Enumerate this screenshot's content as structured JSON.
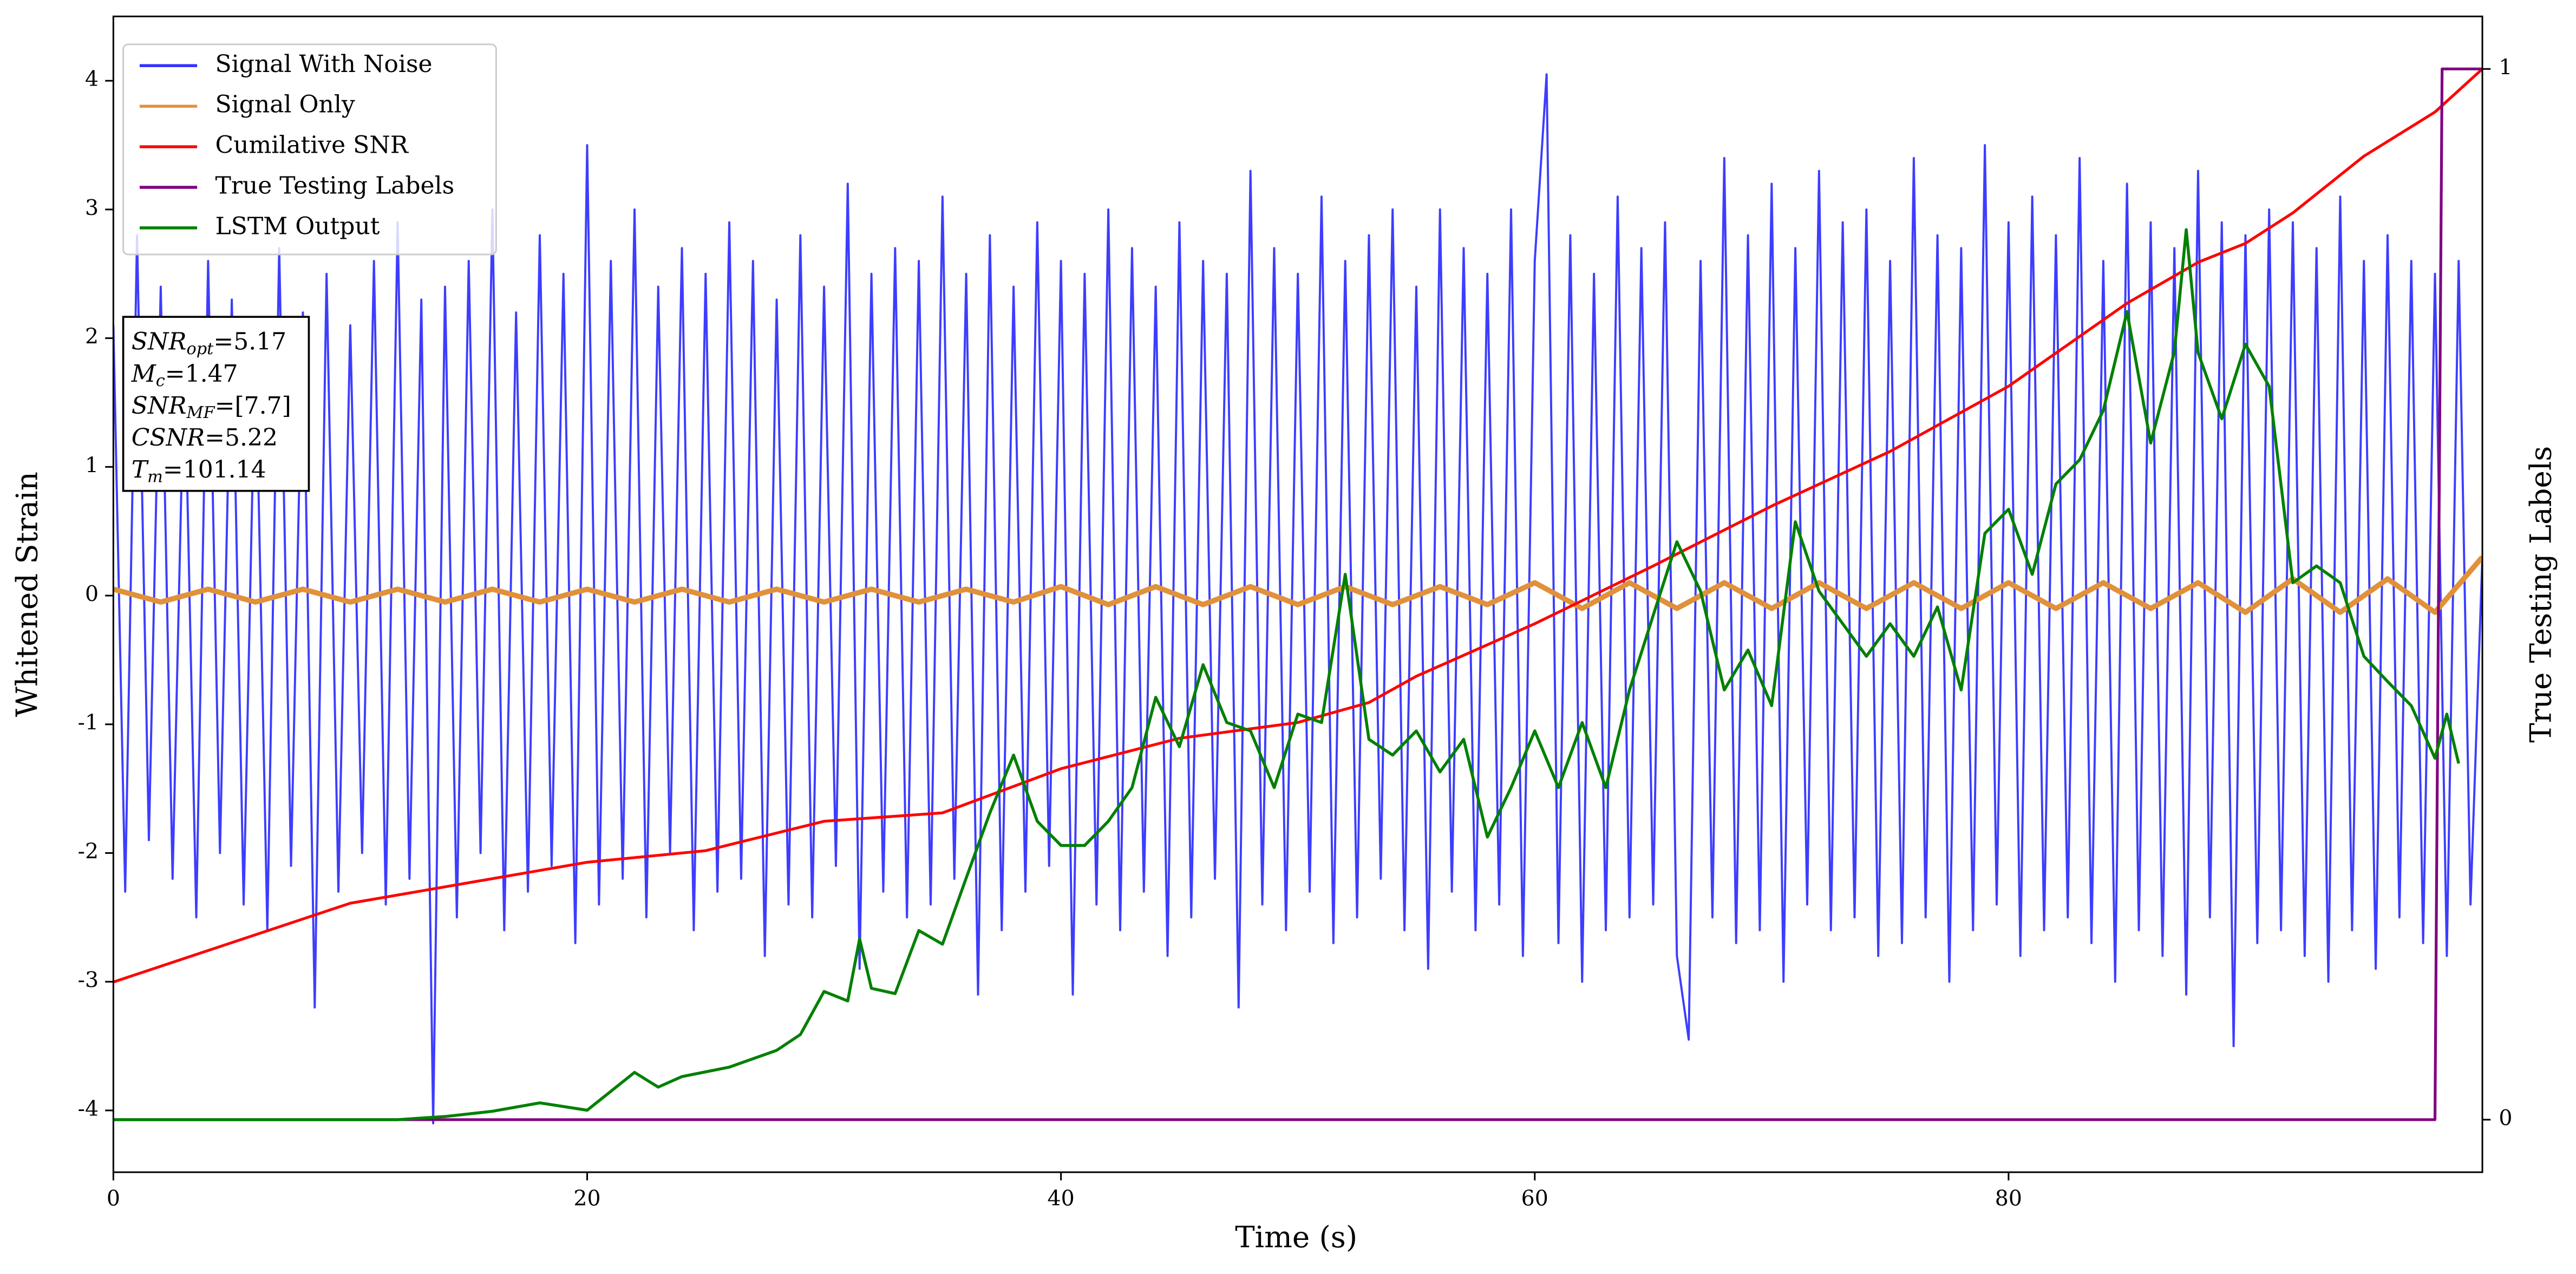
{
  "chart_data": {
    "type": "line",
    "xlabel": "Time (s)",
    "ylabel": "Whitened Strain",
    "y2label": "True Testing Labels",
    "xlim": [
      0,
      100
    ],
    "xticks": [
      0,
      20,
      40,
      60,
      80
    ],
    "ylim": [
      -4.48,
      4.5
    ],
    "yticks": [
      -4,
      -3,
      -2,
      -1,
      0,
      1,
      2,
      3,
      4
    ],
    "y2lim": [
      -0.05,
      1.05
    ],
    "y2ticks": [
      0,
      1
    ],
    "legend": "upper left",
    "annotation_lines": [
      {
        "symbol": "SNR",
        "subscript": "opt",
        "text": "=5.17"
      },
      {
        "symbol": "M",
        "subscript": "c",
        "text": "=1.47"
      },
      {
        "symbol": "SNR",
        "subscript": "MF",
        "text": "=[7.7]"
      },
      {
        "symbol": "CSNR",
        "text": "=5.22"
      },
      {
        "symbol": "T",
        "subscript": "m",
        "text": "=101.14"
      }
    ],
    "series": [
      {
        "name": "Signal With Noise",
        "color": "#3333ff",
        "x": [
          0,
          0.5,
          1,
          1.5,
          2,
          2.5,
          3,
          3.5,
          4,
          4.5,
          5,
          5.5,
          6,
          6.5,
          7,
          7.5,
          8,
          8.5,
          9,
          9.5,
          10,
          10.5,
          11,
          11.5,
          12,
          12.5,
          13,
          13.5,
          14,
          14.5,
          15,
          15.5,
          16,
          16.5,
          17,
          17.5,
          18,
          18.5,
          19,
          19.5,
          20,
          20.5,
          21,
          21.5,
          22,
          22.5,
          23,
          23.5,
          24,
          24.5,
          25,
          25.5,
          26,
          26.5,
          27,
          27.5,
          28,
          28.5,
          29,
          29.5,
          30,
          30.5,
          31,
          31.5,
          32,
          32.5,
          33,
          33.5,
          34,
          34.5,
          35,
          35.5,
          36,
          36.5,
          37,
          37.5,
          38,
          38.5,
          39,
          39.5,
          40,
          40.5,
          41,
          41.5,
          42,
          42.5,
          43,
          43.5,
          44,
          44.5,
          45,
          45.5,
          46,
          46.5,
          47,
          47.5,
          48,
          48.5,
          49,
          49.5,
          50,
          50.5,
          51,
          51.5,
          52,
          52.5,
          53,
          53.5,
          54,
          54.5,
          55,
          55.5,
          56,
          56.5,
          57,
          57.5,
          58,
          58.5,
          59,
          59.5,
          60,
          60.5,
          61,
          61.5,
          62,
          62.5,
          63,
          63.5,
          64,
          64.5,
          65,
          65.5,
          66,
          66.5,
          67,
          67.5,
          68,
          68.5,
          69,
          69.5,
          70,
          70.5,
          71,
          71.5,
          72,
          72.5,
          73,
          73.5,
          74,
          74.5,
          75,
          75.5,
          76,
          76.5,
          77,
          77.5,
          78,
          78.5,
          79,
          79.5,
          80,
          80.5,
          81,
          81.5,
          82,
          82.5,
          83,
          83.5,
          84,
          84.5,
          85,
          85.5,
          86,
          86.5,
          87,
          87.5,
          88,
          88.5,
          89,
          89.5,
          90,
          90.5,
          91,
          91.5,
          92,
          92.5,
          93,
          93.5,
          94,
          94.5,
          95,
          95.5,
          96,
          96.5,
          97,
          97.5,
          98,
          98.5,
          99,
          99.5,
          100
        ],
        "values": [
          2.1,
          -2.3,
          2.8,
          -1.9,
          2.4,
          -2.2,
          1.9,
          -2.5,
          2.6,
          -2.0,
          2.3,
          -2.4,
          2.0,
          -2.6,
          2.7,
          -2.1,
          2.2,
          -3.2,
          2.5,
          -2.3,
          2.1,
          -2.0,
          2.6,
          -2.4,
          2.9,
          -2.2,
          2.3,
          -4.1,
          2.4,
          -2.5,
          2.6,
          -2.0,
          3.0,
          -2.6,
          2.2,
          -2.3,
          2.8,
          -2.1,
          2.5,
          -2.7,
          3.5,
          -2.4,
          2.6,
          -2.2,
          3.0,
          -2.5,
          2.4,
          -2.0,
          2.7,
          -2.6,
          2.5,
          -2.3,
          2.9,
          -2.2,
          2.6,
          -2.8,
          2.3,
          -2.4,
          2.8,
          -2.5,
          2.4,
          -2.1,
          3.2,
          -2.9,
          2.5,
          -2.3,
          2.7,
          -2.5,
          2.6,
          -2.4,
          3.1,
          -2.2,
          2.5,
          -3.1,
          2.8,
          -2.6,
          2.4,
          -2.3,
          2.9,
          -2.1,
          2.6,
          -3.1,
          2.5,
          -2.4,
          3.0,
          -2.6,
          2.7,
          -2.3,
          2.4,
          -2.8,
          2.9,
          -2.5,
          2.6,
          -2.2,
          2.5,
          -3.2,
          3.3,
          -2.4,
          2.7,
          -2.6,
          2.5,
          -2.3,
          3.1,
          -2.7,
          2.6,
          -2.5,
          2.8,
          -2.2,
          3.0,
          -2.6,
          2.4,
          -2.9,
          3.0,
          -2.3,
          2.7,
          -2.6,
          2.5,
          -2.4,
          3.0,
          -2.8,
          2.6,
          4.05,
          -2.7,
          2.8,
          -3.0,
          2.5,
          -2.6,
          3.1,
          -2.5,
          2.7,
          -2.4,
          2.9,
          -2.8,
          -3.45,
          2.6,
          -2.5,
          3.4,
          -2.7,
          2.8,
          -2.6,
          3.2,
          -3.0,
          2.7,
          -2.4,
          3.3,
          -2.6,
          2.9,
          -2.5,
          3.0,
          -2.8,
          2.6,
          -2.7,
          3.4,
          -2.5,
          2.8,
          -3.0,
          2.7,
          -2.6,
          3.5,
          -2.4,
          2.9,
          -2.8,
          3.1,
          -2.6,
          2.8,
          -2.5,
          3.4,
          -2.7,
          2.6,
          -3.0,
          3.2,
          -2.6,
          2.9,
          -2.8,
          2.7,
          -3.1,
          3.3,
          -2.5,
          2.9,
          -3.5,
          2.8,
          -2.7,
          3.0,
          -2.6,
          2.9,
          -2.8,
          2.7,
          -3.0,
          3.1,
          -2.6,
          2.6,
          -2.9,
          2.8,
          -2.5,
          2.6,
          -2.7,
          2.5,
          -2.8,
          2.6,
          -2.4,
          0.3
        ]
      },
      {
        "name": "Signal Only",
        "color": "#e0913a",
        "x": [
          0,
          2,
          4,
          6,
          8,
          10,
          12,
          14,
          16,
          18,
          20,
          22,
          24,
          26,
          28,
          30,
          32,
          34,
          36,
          38,
          40,
          42,
          44,
          46,
          48,
          50,
          52,
          54,
          56,
          58,
          60,
          62,
          64,
          66,
          68,
          70,
          72,
          74,
          76,
          78,
          80,
          82,
          84,
          86,
          88,
          90,
          92,
          94,
          96,
          98,
          100
        ],
        "values": [
          0.05,
          -0.05,
          0.05,
          -0.05,
          0.05,
          -0.05,
          0.05,
          -0.05,
          0.05,
          -0.05,
          0.05,
          -0.05,
          0.05,
          -0.05,
          0.05,
          -0.05,
          0.05,
          -0.05,
          0.05,
          -0.05,
          0.07,
          -0.07,
          0.07,
          -0.07,
          0.07,
          -0.07,
          0.07,
          -0.07,
          0.07,
          -0.07,
          0.1,
          -0.1,
          0.1,
          -0.1,
          0.1,
          -0.1,
          0.1,
          -0.1,
          0.1,
          -0.1,
          0.1,
          -0.1,
          0.1,
          -0.1,
          0.1,
          -0.13,
          0.13,
          -0.13,
          0.13,
          -0.13,
          0.3
        ]
      },
      {
        "name": "Cumilative SNR",
        "color": "#ff0000",
        "axis": "y2",
        "x": [
          0,
          10,
          20,
          25,
          30,
          35,
          40,
          45,
          50,
          53,
          55,
          60,
          65,
          70,
          75,
          80,
          85,
          88,
          90,
          92,
          95,
          98,
          100
        ],
        "values": [
          0.131,
          0.206,
          0.245,
          0.256,
          0.284,
          0.292,
          0.334,
          0.363,
          0.378,
          0.397,
          0.422,
          0.472,
          0.527,
          0.584,
          0.636,
          0.698,
          0.777,
          0.816,
          0.834,
          0.863,
          0.917,
          0.959,
          1.0
        ]
      },
      {
        "name": "True Testing Labels",
        "color": "#800080",
        "axis": "y2",
        "x": [
          0,
          98,
          98.3,
          100
        ],
        "values": [
          0,
          0,
          1,
          1
        ]
      },
      {
        "name": "LSTM Output",
        "color": "#008000",
        "axis": "y2",
        "x": [
          0,
          12,
          14,
          16,
          18,
          20,
          21,
          22,
          23,
          24,
          26,
          28,
          29,
          30,
          31,
          31.5,
          32,
          33,
          34,
          35,
          36,
          37,
          38,
          39,
          40,
          41,
          42,
          43,
          44,
          45,
          46,
          47,
          48,
          49,
          50,
          51,
          52,
          53,
          54,
          55,
          56,
          57,
          58,
          59,
          60,
          61,
          62,
          63,
          64,
          65,
          66,
          67,
          68,
          69,
          70,
          71,
          72,
          73,
          74,
          75,
          76,
          77,
          78,
          79,
          80,
          81,
          82,
          83,
          84,
          85,
          86,
          87,
          87.5,
          88,
          89,
          90,
          91,
          92,
          93,
          94,
          95,
          96,
          97,
          98,
          98.5,
          99
        ],
        "values": [
          0,
          0,
          0.003,
          0.008,
          0.016,
          0.009,
          0.027,
          0.045,
          0.031,
          0.041,
          0.05,
          0.066,
          0.081,
          0.122,
          0.113,
          0.172,
          0.125,
          0.12,
          0.18,
          0.167,
          0.23,
          0.292,
          0.347,
          0.284,
          0.261,
          0.261,
          0.284,
          0.316,
          0.402,
          0.355,
          0.433,
          0.378,
          0.37,
          0.316,
          0.386,
          0.378,
          0.519,
          0.362,
          0.347,
          0.37,
          0.331,
          0.362,
          0.269,
          0.316,
          0.37,
          0.316,
          0.378,
          0.316,
          0.409,
          0.48,
          0.55,
          0.503,
          0.409,
          0.447,
          0.394,
          0.569,
          0.503,
          0.472,
          0.441,
          0.472,
          0.441,
          0.488,
          0.409,
          0.558,
          0.581,
          0.519,
          0.605,
          0.628,
          0.675,
          0.769,
          0.644,
          0.731,
          0.847,
          0.73,
          0.667,
          0.738,
          0.698,
          0.511,
          0.527,
          0.511,
          0.441,
          0.417,
          0.394,
          0.344,
          0.386,
          0.339
        ]
      }
    ]
  }
}
